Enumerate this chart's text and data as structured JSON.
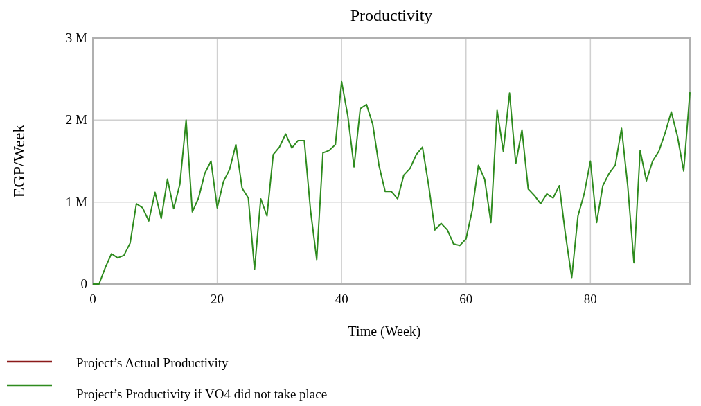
{
  "chart_data": {
    "type": "line",
    "title": "Productivity",
    "xlabel": "Time (Week)",
    "ylabel": "EGP/Week",
    "x": [
      0,
      1,
      2,
      3,
      4,
      5,
      6,
      7,
      8,
      9,
      10,
      11,
      12,
      13,
      14,
      15,
      16,
      17,
      18,
      19,
      20,
      21,
      22,
      23,
      24,
      25,
      26,
      27,
      28,
      29,
      30,
      31,
      32,
      33,
      34,
      35,
      36,
      37,
      38,
      39,
      40,
      41,
      42,
      43,
      44,
      45,
      46,
      47,
      48,
      49,
      50,
      51,
      52,
      53,
      54,
      55,
      56,
      57,
      58,
      59,
      60,
      61,
      62,
      63,
      64,
      65,
      66,
      67,
      68,
      69,
      70,
      71,
      72,
      73,
      74,
      75,
      76,
      77,
      78,
      79,
      80,
      81,
      82,
      83,
      84,
      85,
      86,
      87,
      88,
      89,
      90,
      91,
      92,
      93,
      94,
      95,
      96
    ],
    "series": [
      {
        "name": "Project’s Actual Productivity",
        "color": "#8b1a1a",
        "values": [
          null,
          null,
          null,
          null,
          null,
          null,
          null,
          null,
          null,
          null,
          null,
          null,
          null,
          null,
          null,
          null,
          null,
          null,
          null,
          null,
          null,
          null,
          null,
          null,
          null,
          null,
          null,
          null,
          null,
          null,
          null,
          null,
          null,
          null,
          null,
          null,
          null,
          null,
          null,
          null,
          null,
          null,
          null,
          null,
          null,
          null,
          null,
          null,
          null,
          null,
          null,
          null,
          null,
          null,
          null,
          null,
          null,
          null,
          null,
          null,
          null,
          null,
          null,
          null,
          null,
          null,
          null,
          null,
          null,
          null,
          null,
          null,
          null,
          null,
          null,
          null,
          null,
          null,
          null,
          null,
          null,
          null,
          null,
          null,
          null,
          null,
          null,
          null,
          null,
          null,
          null,
          null,
          null,
          null,
          null,
          null,
          null
        ]
      },
      {
        "name": "Project’s Productivity if VO4 did not take place",
        "color": "#2e8b1e",
        "values": [
          0,
          0,
          200000,
          370000,
          320000,
          350000,
          500000,
          980000,
          930000,
          770000,
          1120000,
          800000,
          1280000,
          920000,
          1220000,
          2000000,
          880000,
          1050000,
          1350000,
          1500000,
          930000,
          1250000,
          1400000,
          1700000,
          1170000,
          1050000,
          180000,
          1040000,
          830000,
          1580000,
          1670000,
          1830000,
          1660000,
          1750000,
          1750000,
          900000,
          300000,
          1600000,
          1630000,
          1700000,
          2470000,
          2050000,
          1430000,
          2140000,
          2190000,
          1950000,
          1450000,
          1130000,
          1130000,
          1040000,
          1330000,
          1410000,
          1580000,
          1670000,
          1200000,
          660000,
          740000,
          660000,
          490000,
          470000,
          550000,
          900000,
          1450000,
          1280000,
          750000,
          2120000,
          1620000,
          2330000,
          1470000,
          1880000,
          1160000,
          1080000,
          980000,
          1100000,
          1050000,
          1200000,
          600000,
          80000,
          830000,
          1100000,
          1500000,
          750000,
          1200000,
          1350000,
          1450000,
          1900000,
          1200000,
          260000,
          1630000,
          1260000,
          1500000,
          1620000,
          1840000,
          2100000,
          1800000,
          1380000,
          2340000
        ]
      }
    ],
    "xlim": [
      0,
      96
    ],
    "xticks": [
      0,
      20,
      40,
      60,
      80
    ],
    "ylim": [
      0,
      3000000
    ],
    "yticks": [
      {
        "value": 0,
        "label": "0"
      },
      {
        "value": 1000000,
        "label": "1 M"
      },
      {
        "value": 2000000,
        "label": "2 M"
      },
      {
        "value": 3000000,
        "label": "3 M"
      }
    ],
    "grid": true,
    "legend": "bottom",
    "marker": "none",
    "line_style": "solid"
  }
}
